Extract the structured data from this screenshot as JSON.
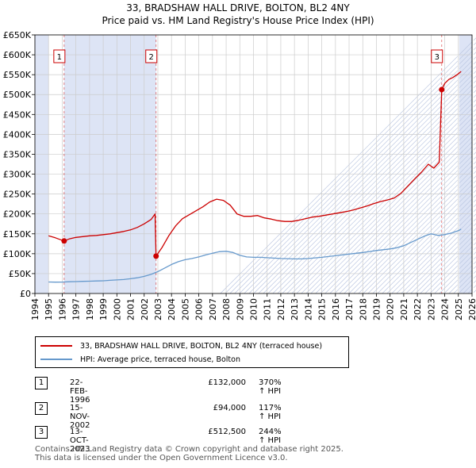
{
  "title_line1": "33, BRADSHAW HALL DRIVE, BOLTON, BL2 4NY",
  "title_line2": "Price paid vs. HM Land Registry's House Price Index (HPI)",
  "colors": {
    "property": "#cc0000",
    "hpi": "#6699cc",
    "shade": "#dde4f5",
    "grid": "#cccccc"
  },
  "chart_data": {
    "type": "line",
    "title": "33, BRADSHAW HALL DRIVE, BOLTON, BL2 4NY — Price paid vs. HM Land Registry's House Price Index (HPI)",
    "xlabel": "",
    "ylabel": "",
    "xlim": [
      1994,
      2026
    ],
    "ylim": [
      0,
      650000
    ],
    "grid": true,
    "legend_position": "below",
    "y_ticks": [
      0,
      50000,
      100000,
      150000,
      200000,
      250000,
      300000,
      350000,
      400000,
      450000,
      500000,
      550000,
      600000,
      650000
    ],
    "y_tick_labels": [
      "£0",
      "£50K",
      "£100K",
      "£150K",
      "£200K",
      "£250K",
      "£300K",
      "£350K",
      "£400K",
      "£450K",
      "£500K",
      "£550K",
      "£600K",
      "£650K"
    ],
    "x_ticks": [
      1994,
      1995,
      1996,
      1997,
      1998,
      1999,
      2000,
      2001,
      2002,
      2003,
      2004,
      2005,
      2006,
      2007,
      2008,
      2009,
      2010,
      2011,
      2012,
      2013,
      2014,
      2015,
      2016,
      2017,
      2018,
      2019,
      2020,
      2021,
      2022,
      2023,
      2024,
      2025,
      2026
    ],
    "x_tick_labels": [
      "1994",
      "1995",
      "1996",
      "1997",
      "1998",
      "1999",
      "2000",
      "2001",
      "2002",
      "2003",
      "2004",
      "2005",
      "2006",
      "2007",
      "2008",
      "2009",
      "2010",
      "2011",
      "2012",
      "2013",
      "2014",
      "2015",
      "2016",
      "2017",
      "2018",
      "2019",
      "2020",
      "2021",
      "2022",
      "2023",
      "2024",
      "2025",
      "2026"
    ],
    "shaded_ranges": [
      [
        1994,
        1995.0
      ],
      [
        1996.14,
        2002.87
      ],
      [
        2025.0,
        2026
      ]
    ],
    "series": [
      {
        "name": "33, BRADSHAW HALL DRIVE, BOLTON, BL2 4NY (terraced house)",
        "x": [
          1995.0,
          1995.5,
          1996.14,
          1996.5,
          1997.0,
          1997.5,
          1998.0,
          1998.5,
          1999.0,
          1999.5,
          2000.0,
          2000.5,
          2001.0,
          2001.5,
          2002.0,
          2002.5,
          2002.8,
          2002.87,
          2003.3,
          2003.8,
          2004.3,
          2004.8,
          2005.3,
          2005.8,
          2006.3,
          2006.8,
          2007.3,
          2007.8,
          2008.3,
          2008.8,
          2009.3,
          2009.8,
          2010.3,
          2010.8,
          2011.3,
          2011.8,
          2012.3,
          2012.8,
          2013.3,
          2013.8,
          2014.3,
          2014.8,
          2015.3,
          2015.8,
          2016.3,
          2016.8,
          2017.3,
          2017.8,
          2018.3,
          2018.8,
          2019.3,
          2019.8,
          2020.3,
          2020.8,
          2021.3,
          2021.8,
          2022.3,
          2022.8,
          2023.2,
          2023.6,
          2023.78,
          2024.0,
          2024.3,
          2024.6,
          2024.9,
          2025.2
        ],
        "values": [
          145000,
          140000,
          132000,
          137000,
          141000,
          143000,
          145000,
          146000,
          148000,
          150000,
          153000,
          156000,
          160000,
          166000,
          175000,
          186000,
          200000,
          94000,
          115000,
          145000,
          170000,
          188000,
          198000,
          208000,
          218000,
          230000,
          237000,
          234000,
          222000,
          200000,
          194000,
          194000,
          196000,
          190000,
          187000,
          183000,
          181000,
          181000,
          184000,
          188000,
          192000,
          194000,
          197000,
          200000,
          203000,
          206000,
          210000,
          215000,
          220000,
          226000,
          231000,
          235000,
          240000,
          252000,
          270000,
          288000,
          305000,
          325000,
          315000,
          330000,
          512500,
          528000,
          538000,
          543000,
          550000,
          558000
        ]
      },
      {
        "name": "HPI: Average price, terraced house, Bolton",
        "x": [
          1995.0,
          1995.5,
          1996.0,
          1996.5,
          1997.0,
          1997.5,
          1998.0,
          1998.5,
          1999.0,
          1999.5,
          2000.0,
          2000.5,
          2001.0,
          2001.5,
          2002.0,
          2002.5,
          2003.0,
          2003.5,
          2004.0,
          2004.5,
          2005.0,
          2005.5,
          2006.0,
          2006.5,
          2007.0,
          2007.5,
          2008.0,
          2008.5,
          2009.0,
          2009.5,
          2010.0,
          2010.5,
          2011.0,
          2011.5,
          2012.0,
          2012.5,
          2013.0,
          2013.5,
          2014.0,
          2014.5,
          2015.0,
          2015.5,
          2016.0,
          2016.5,
          2017.0,
          2017.5,
          2018.0,
          2018.5,
          2019.0,
          2019.5,
          2020.0,
          2020.5,
          2021.0,
          2021.5,
          2022.0,
          2022.5,
          2023.0,
          2023.5,
          2024.0,
          2024.5,
          2025.0,
          2025.2
        ],
        "values": [
          29000,
          28500,
          28800,
          29500,
          30000,
          30500,
          31000,
          31500,
          32000,
          33000,
          34000,
          35000,
          37000,
          39500,
          43000,
          48000,
          55000,
          64000,
          73000,
          80000,
          85000,
          88000,
          92000,
          97000,
          101000,
          105000,
          106000,
          103000,
          96000,
          92000,
          91000,
          91000,
          90000,
          89000,
          88000,
          87500,
          87000,
          87000,
          88000,
          89500,
          91000,
          93000,
          95000,
          97000,
          99000,
          101000,
          103000,
          105500,
          108000,
          110000,
          112000,
          115000,
          120000,
          128000,
          136000,
          144000,
          150000,
          146000,
          148000,
          152000,
          158000,
          162000
        ]
      }
    ],
    "markers": [
      {
        "label": "1",
        "x": 1996.14,
        "y": 132000
      },
      {
        "label": "2",
        "x": 2002.87,
        "y": 94000
      },
      {
        "label": "3",
        "x": 2023.78,
        "y": 512500
      }
    ]
  },
  "legend": {
    "property_label": "33, BRADSHAW HALL DRIVE, BOLTON, BL2 4NY (terraced house)",
    "hpi_label": "HPI: Average price, terraced house, Bolton"
  },
  "transactions": [
    {
      "num": "1",
      "date": "22-FEB-1996",
      "price": "£132,000",
      "hpi": "370% ↑ HPI"
    },
    {
      "num": "2",
      "date": "15-NOV-2002",
      "price": "£94,000",
      "hpi": "117% ↑ HPI"
    },
    {
      "num": "3",
      "date": "13-OCT-2023",
      "price": "£512,500",
      "hpi": "244% ↑ HPI"
    }
  ],
  "footer": {
    "line1": "Contains HM Land Registry data © Crown copyright and database right 2025.",
    "line2": "This data is licensed under the Open Government Licence v3.0."
  }
}
